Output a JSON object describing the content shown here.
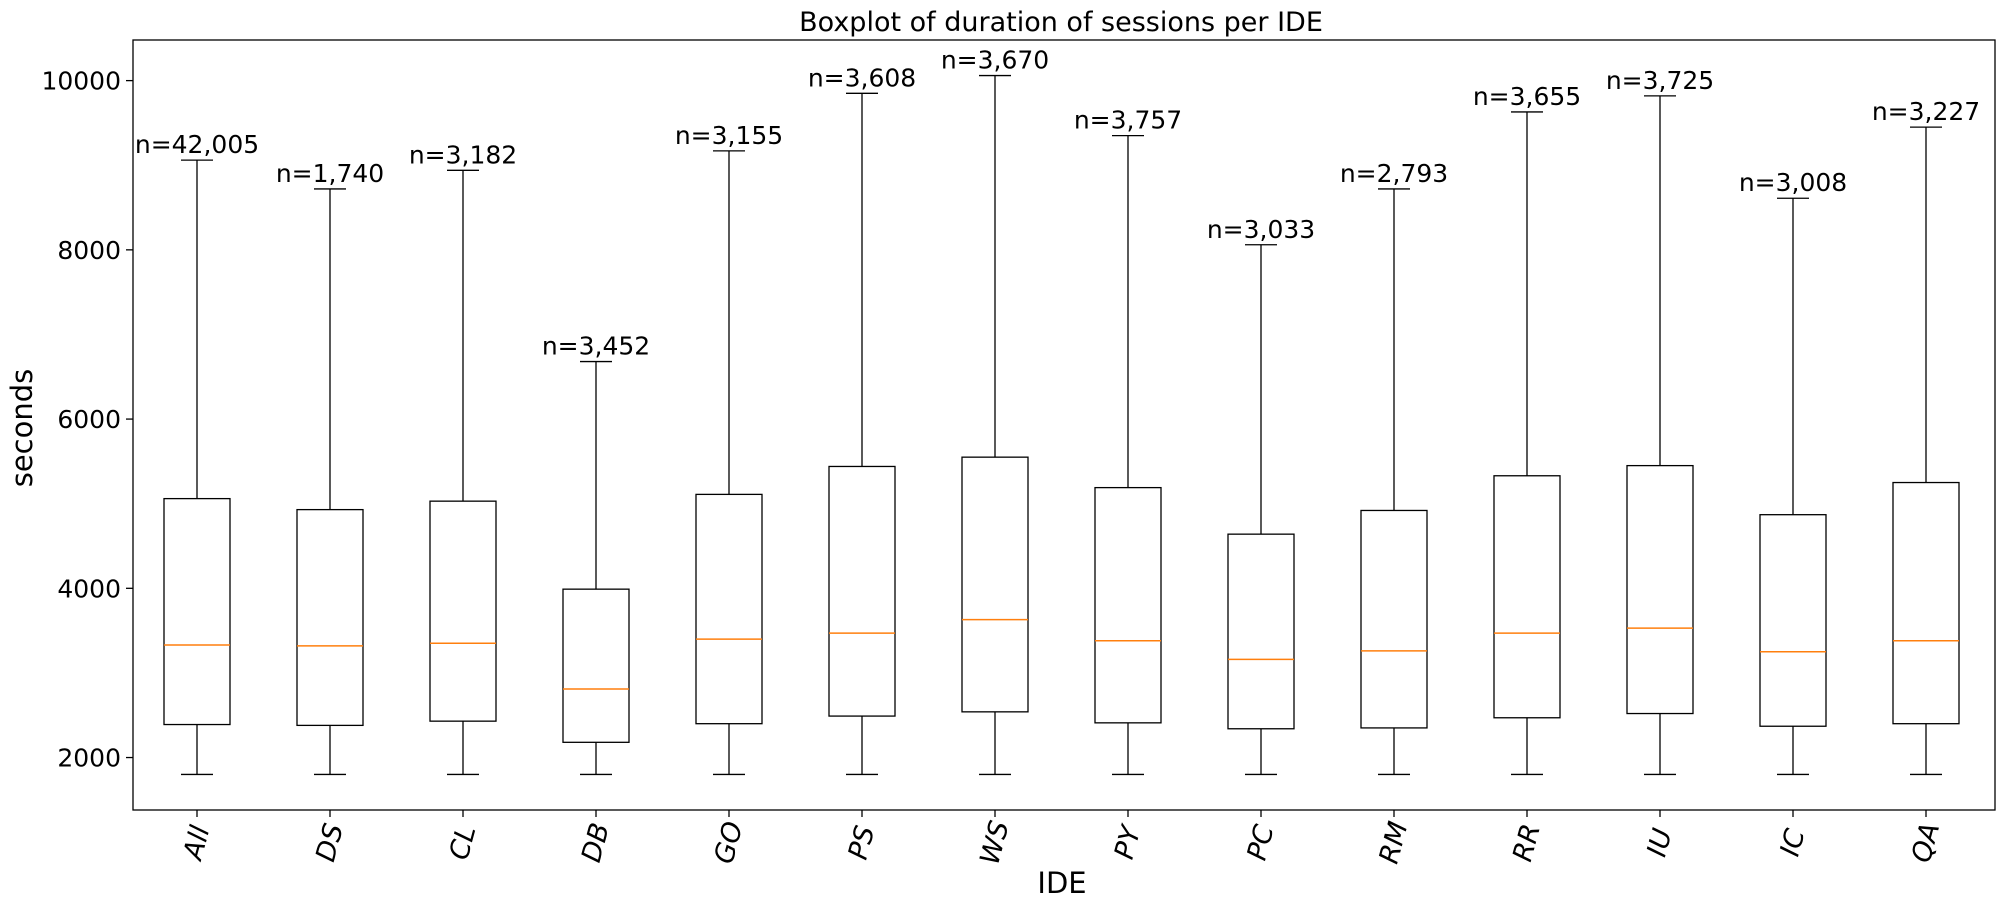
{
  "chart_data": {
    "type": "box",
    "title": "Boxplot of duration of sessions per IDE",
    "xlabel": "IDE",
    "ylabel": "seconds",
    "ylim": [
      1380,
      10480
    ],
    "yticks": [
      2000,
      4000,
      6000,
      8000,
      10000
    ],
    "grid": false,
    "colors": {
      "box": "#000000",
      "median": "#ff7f0e"
    },
    "categories": [
      "All",
      "DS",
      "CL",
      "DB",
      "GO",
      "PS",
      "WS",
      "PY",
      "PC",
      "RM",
      "RR",
      "IU",
      "IC",
      "QA"
    ],
    "series": [
      {
        "label": "All",
        "n_label": "n=42,005",
        "whisker_low": 1800,
        "q1": 2390,
        "median": 3330,
        "q3": 5060,
        "whisker_high": 9060
      },
      {
        "label": "DS",
        "n_label": "n=1,740",
        "whisker_low": 1800,
        "q1": 2380,
        "median": 3320,
        "q3": 4930,
        "whisker_high": 8720
      },
      {
        "label": "CL",
        "n_label": "n=3,182",
        "whisker_low": 1800,
        "q1": 2430,
        "median": 3350,
        "q3": 5030,
        "whisker_high": 8940
      },
      {
        "label": "DB",
        "n_label": "n=3,452",
        "whisker_low": 1800,
        "q1": 2180,
        "median": 2810,
        "q3": 3990,
        "whisker_high": 6680
      },
      {
        "label": "GO",
        "n_label": "n=3,155",
        "whisker_low": 1800,
        "q1": 2400,
        "median": 3400,
        "q3": 5110,
        "whisker_high": 9170
      },
      {
        "label": "PS",
        "n_label": "n=3,608",
        "whisker_low": 1800,
        "q1": 2490,
        "median": 3470,
        "q3": 5440,
        "whisker_high": 9850
      },
      {
        "label": "WS",
        "n_label": "n=3,670",
        "whisker_low": 1800,
        "q1": 2540,
        "median": 3630,
        "q3": 5550,
        "whisker_high": 10060
      },
      {
        "label": "PY",
        "n_label": "n=3,757",
        "whisker_low": 1800,
        "q1": 2410,
        "median": 3380,
        "q3": 5190,
        "whisker_high": 9350
      },
      {
        "label": "PC",
        "n_label": "n=3,033",
        "whisker_low": 1800,
        "q1": 2340,
        "median": 3160,
        "q3": 4640,
        "whisker_high": 8060
      },
      {
        "label": "RM",
        "n_label": "n=2,793",
        "whisker_low": 1800,
        "q1": 2350,
        "median": 3260,
        "q3": 4920,
        "whisker_high": 8720
      },
      {
        "label": "RR",
        "n_label": "n=3,655",
        "whisker_low": 1800,
        "q1": 2470,
        "median": 3470,
        "q3": 5330,
        "whisker_high": 9630
      },
      {
        "label": "IU",
        "n_label": "n=3,725",
        "whisker_low": 1800,
        "q1": 2520,
        "median": 3530,
        "q3": 5450,
        "whisker_high": 9820
      },
      {
        "label": "IC",
        "n_label": "n=3,008",
        "whisker_low": 1800,
        "q1": 2370,
        "median": 3250,
        "q3": 4870,
        "whisker_high": 8610
      },
      {
        "label": "QA",
        "n_label": "n=3,227",
        "whisker_low": 1800,
        "q1": 2400,
        "median": 3380,
        "q3": 5250,
        "whisker_high": 9450
      }
    ]
  }
}
